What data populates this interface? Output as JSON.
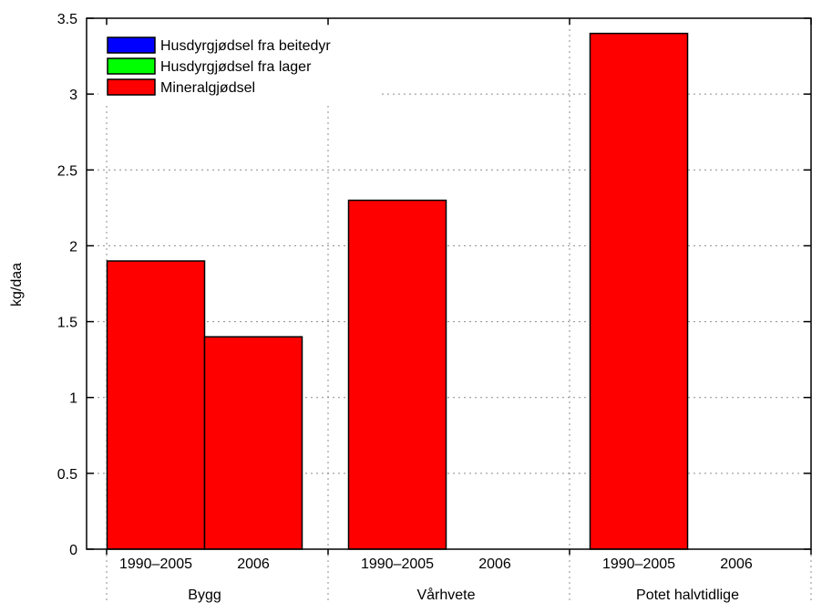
{
  "chart_data": {
    "type": "bar",
    "title": "",
    "ylabel": "kg/daa",
    "xlabel": "",
    "ylim": [
      0,
      3.5
    ],
    "yticks": [
      "0",
      "0.5",
      "1",
      "1.5",
      "2",
      "2.5",
      "3",
      "3.5"
    ],
    "ytick_values": [
      0,
      0.5,
      1,
      1.5,
      2,
      2.5,
      3,
      3.5
    ],
    "grid": true,
    "stacked": true,
    "legend_position": "top-left",
    "groups": [
      {
        "label": "Bygg",
        "periods": [
          "1990–2005",
          "2006"
        ]
      },
      {
        "label": "Vårhvete",
        "periods": [
          "1990–2005",
          "2006"
        ]
      },
      {
        "label": "Potet halvtidlige",
        "periods": [
          "1990–2005",
          "2006"
        ]
      }
    ],
    "series": [
      {
        "name": "Husdyrgjødsel fra beitedyr",
        "color": "#0000ff",
        "values": [
          0,
          0,
          0,
          0,
          0,
          0
        ]
      },
      {
        "name": "Husdyrgjødsel fra lager",
        "color": "#00ff00",
        "values": [
          0,
          0,
          0,
          0,
          0,
          0
        ]
      },
      {
        "name": "Mineralgjødsel",
        "color": "#ff0000",
        "values": [
          1.9,
          1.4,
          2.3,
          0,
          3.4,
          0
        ]
      }
    ]
  }
}
